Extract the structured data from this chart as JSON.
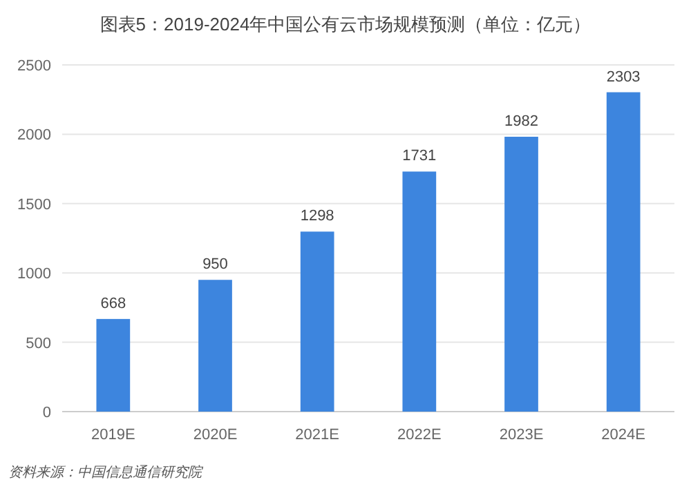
{
  "chart_data": {
    "type": "bar",
    "title": "图表5：2019-2024年中国公有云市场规模预测（单位：亿元）",
    "categories": [
      "2019E",
      "2020E",
      "2021E",
      "2022E",
      "2023E",
      "2024E"
    ],
    "values": [
      668,
      950,
      1298,
      1731,
      1982,
      2303
    ],
    "color": "#3d85de",
    "ylim": [
      0,
      2500
    ],
    "yticks": [
      0,
      500,
      1000,
      1500,
      2000,
      2500
    ],
    "grid": "y",
    "data_labels": true,
    "annotations": [
      "资料来源：中国信息通信研究院"
    ]
  }
}
